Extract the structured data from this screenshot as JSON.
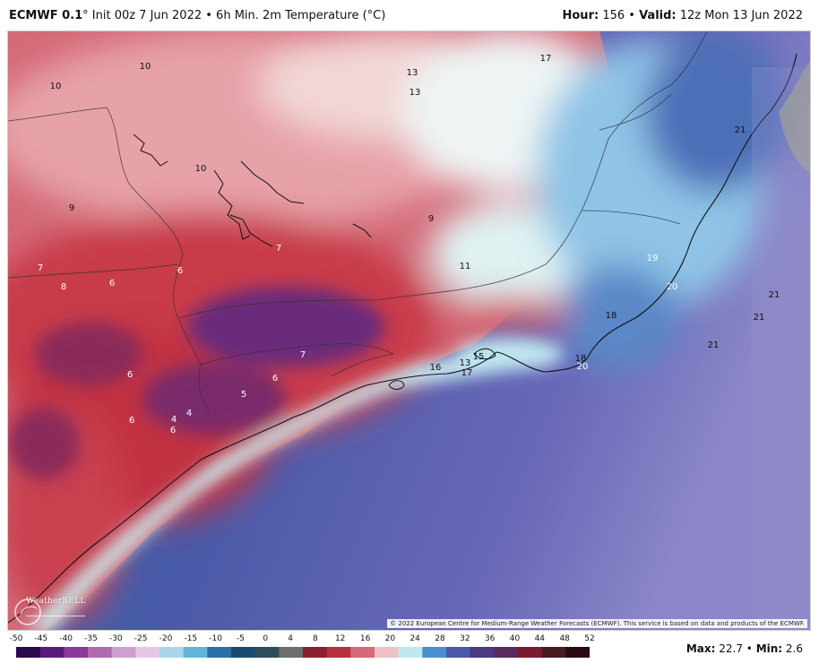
{
  "header": {
    "model": "ECMWF 0.1",
    "degree": "°",
    "init_text": " Init 00z 7 Jun 2022 • 6h Min. 2m Temperature (",
    "unit_text": "°C)",
    "hour_label": "Hour:",
    "hour_value": " 156 • ",
    "valid_label": "Valid:",
    "valid_value": " 12z Mon 13 Jun 2022"
  },
  "map": {
    "labels": [
      {
        "text": "10",
        "tone": "dark"
      },
      {
        "text": "10",
        "tone": "dark"
      },
      {
        "text": "13",
        "tone": "dark"
      },
      {
        "text": "13",
        "tone": "dark"
      },
      {
        "text": "17",
        "tone": "dark"
      },
      {
        "text": "10",
        "tone": "dark"
      },
      {
        "text": "9",
        "tone": "dark"
      },
      {
        "text": "9",
        "tone": "dark"
      },
      {
        "text": "7",
        "tone": "light"
      },
      {
        "text": "11",
        "tone": "dark"
      },
      {
        "text": "7",
        "tone": "light"
      },
      {
        "text": "8",
        "tone": "light"
      },
      {
        "text": "6",
        "tone": "light"
      },
      {
        "text": "6",
        "tone": "light"
      },
      {
        "text": "21",
        "tone": "dark"
      },
      {
        "text": "19",
        "tone": "light"
      },
      {
        "text": "20",
        "tone": "light"
      },
      {
        "text": "21",
        "tone": "dark"
      },
      {
        "text": "21",
        "tone": "dark"
      },
      {
        "text": "18",
        "tone": "dark"
      },
      {
        "text": "21",
        "tone": "dark"
      },
      {
        "text": "7",
        "tone": "light"
      },
      {
        "text": "18",
        "tone": "dark"
      },
      {
        "text": "20",
        "tone": "light"
      },
      {
        "text": "16",
        "tone": "dark"
      },
      {
        "text": "13",
        "tone": "dark"
      },
      {
        "text": "15",
        "tone": "dark"
      },
      {
        "text": "17",
        "tone": "dark"
      },
      {
        "text": "6",
        "tone": "light"
      },
      {
        "text": "6",
        "tone": "light"
      },
      {
        "text": "5",
        "tone": "light"
      },
      {
        "text": "6",
        "tone": "light"
      },
      {
        "text": "4",
        "tone": "light"
      },
      {
        "text": "4",
        "tone": "light"
      },
      {
        "text": "6",
        "tone": "light"
      }
    ],
    "attribution": "© 2022 European Centre for Medium-Range Weather Forecasts (ECMWF). This service is based on data and products of the ECMWF.",
    "logo_text": "WeatherBELL"
  },
  "colorbar": {
    "ticks": [
      "-50",
      "-45",
      "-40",
      "-35",
      "-30",
      "-25",
      "-20",
      "-15",
      "-10",
      "-5",
      "0",
      "4",
      "8",
      "12",
      "16",
      "20",
      "24",
      "28",
      "32",
      "36",
      "40",
      "44",
      "48",
      "52"
    ],
    "colors": [
      "#2a0a4a",
      "#5a1a7a",
      "#8a3a9a",
      "#b06ab0",
      "#cf9fcf",
      "#e7c8e3",
      "#a9d6ea",
      "#5fb6d8",
      "#2b6fa8",
      "#1a4a70",
      "#2e4f5a",
      "#6e6e6e",
      "#8a2030",
      "#b83040",
      "#d76a78",
      "#edc2c6",
      "#bfe8ee",
      "#4a8fd0",
      "#4a59a8",
      "#4a3a80",
      "#5a2a60",
      "#7a1a30",
      "#4a1a20",
      "#2a0a10"
    ]
  },
  "stats": {
    "max_label": "Max:",
    "max_value": " 22.7 • ",
    "min_label": "Min:",
    "min_value": " 2.6"
  }
}
